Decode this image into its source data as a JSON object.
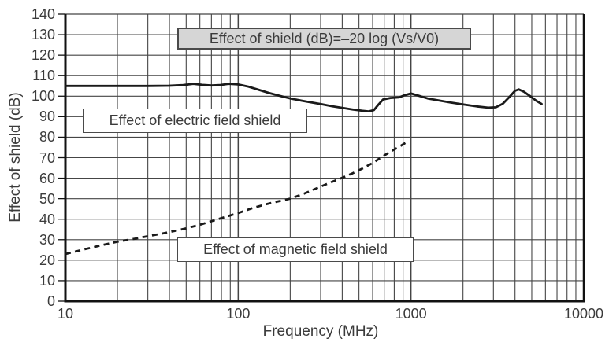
{
  "chart_data": {
    "type": "line",
    "title": "Effect of shield (dB)=–20 log (Vs/V0)",
    "xlabel": "Frequency (MHz)",
    "ylabel": "Effect of shield (dB)",
    "x_scale": "log",
    "xlim": [
      10,
      10000
    ],
    "ylim": [
      0,
      140
    ],
    "x_ticks": [
      10,
      100,
      1000,
      10000
    ],
    "y_ticks": [
      0,
      10,
      20,
      30,
      40,
      50,
      60,
      70,
      80,
      90,
      100,
      110,
      120,
      130,
      140
    ],
    "grid": "log minor verticals (2-9 per decade), horizontal every 10 dB",
    "legend_position": "inline annotation boxes",
    "series": [
      {
        "name": "Effect of electric field shield",
        "style": "solid",
        "points": [
          [
            10,
            105
          ],
          [
            15,
            105
          ],
          [
            20,
            105
          ],
          [
            25,
            105
          ],
          [
            30,
            105
          ],
          [
            40,
            105.1
          ],
          [
            48,
            105.4
          ],
          [
            55,
            106
          ],
          [
            62,
            105.5
          ],
          [
            70,
            105.2
          ],
          [
            78,
            105.4
          ],
          [
            88,
            106
          ],
          [
            100,
            105.7
          ],
          [
            115,
            104.6
          ],
          [
            130,
            103.2
          ],
          [
            150,
            101.6
          ],
          [
            175,
            100.1
          ],
          [
            200,
            98.9
          ],
          [
            250,
            97.3
          ],
          [
            300,
            96.2
          ],
          [
            350,
            95.1
          ],
          [
            400,
            94.3
          ],
          [
            460,
            93.5
          ],
          [
            520,
            92.9
          ],
          [
            570,
            92.6
          ],
          [
            610,
            93.2
          ],
          [
            650,
            96
          ],
          [
            690,
            98.4
          ],
          [
            760,
            99.1
          ],
          [
            850,
            99.4
          ],
          [
            920,
            100.5
          ],
          [
            1000,
            101.3
          ],
          [
            1100,
            100.3
          ],
          [
            1250,
            98.9
          ],
          [
            1450,
            97.9
          ],
          [
            1700,
            96.9
          ],
          [
            2000,
            96
          ],
          [
            2400,
            95
          ],
          [
            2800,
            94.4
          ],
          [
            3100,
            94.6
          ],
          [
            3400,
            96.3
          ],
          [
            3700,
            99.5
          ],
          [
            4000,
            102.6
          ],
          [
            4200,
            103.3
          ],
          [
            4500,
            102.2
          ],
          [
            4900,
            100
          ],
          [
            5300,
            97.8
          ],
          [
            5700,
            96.2
          ]
        ]
      },
      {
        "name": "Effect of magnetic field shield",
        "style": "dashed",
        "points": [
          [
            10,
            23
          ],
          [
            13,
            25.4
          ],
          [
            16,
            27.2
          ],
          [
            20,
            29
          ],
          [
            25,
            30.4
          ],
          [
            30,
            31.7
          ],
          [
            36,
            32.9
          ],
          [
            43,
            34.3
          ],
          [
            50,
            35.5
          ],
          [
            60,
            37.3
          ],
          [
            70,
            39
          ],
          [
            85,
            41.2
          ],
          [
            100,
            43
          ],
          [
            120,
            45.3
          ],
          [
            145,
            47.3
          ],
          [
            175,
            48.9
          ],
          [
            200,
            50
          ],
          [
            240,
            52.4
          ],
          [
            290,
            55.4
          ],
          [
            340,
            57.8
          ],
          [
            400,
            60.2
          ],
          [
            460,
            62.4
          ],
          [
            520,
            64.6
          ],
          [
            600,
            67.4
          ],
          [
            680,
            70.4
          ],
          [
            760,
            72.9
          ],
          [
            850,
            75.2
          ],
          [
            950,
            77.7
          ]
        ]
      }
    ],
    "annotations": [
      {
        "text": "Effect of shield (dB)=–20 log (Vs/V0)",
        "kind": "formula-box"
      },
      {
        "text": "Effect of electric field shield",
        "kind": "series-label"
      },
      {
        "text": "Effect of magnetic field shield",
        "kind": "series-label"
      }
    ]
  },
  "colors": {
    "background": "#ffffff",
    "curve": "#1a1a1a",
    "grid": "#454545",
    "axis": "#111111",
    "text": "#3b3b3b",
    "formula_box_fill": "#d6d6d6",
    "box_border": "#4a4a4a"
  }
}
